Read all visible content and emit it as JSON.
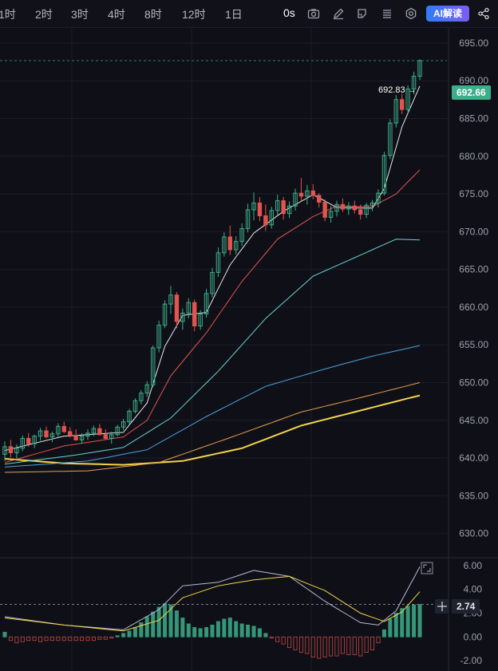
{
  "toolbar": {
    "timeframes": [
      "1时",
      "2时",
      "3时",
      "4时",
      "8时",
      "12时",
      "1日"
    ],
    "zero_label": "0s",
    "ai_label": "AI解读",
    "icons": [
      "camera-icon",
      "pencil-icon",
      "tag-icon",
      "list-icon",
      "settings-icon",
      "share-icon"
    ]
  },
  "price_axis": {
    "ticks": [
      "695.00",
      "690.00",
      "685.00",
      "680.00",
      "675.00",
      "670.00",
      "665.00",
      "660.00",
      "655.00",
      "650.00",
      "645.00",
      "640.00",
      "635.00",
      "630.00"
    ],
    "last_price": "692.66",
    "high_label": "692.83 →"
  },
  "macd_axis": {
    "ticks": [
      "6.00",
      "4.00",
      "2.00",
      "0.00",
      "-2.00"
    ],
    "current": "2.74"
  },
  "colors": {
    "up": "#3cae8a",
    "down": "#e2544f",
    "ma5": "#e8e8e8",
    "ma10": "#e2544f",
    "ma20": "#6ad3d0",
    "ma30": "#4aa3e0",
    "ma60": "#e8a04a",
    "ma120": "#f2d34a"
  },
  "chart_data": {
    "type": "candlestick",
    "ylim": [
      627,
      697
    ],
    "candles": [
      [
        640.5,
        642.2,
        639.6,
        641.5
      ],
      [
        641.5,
        642.4,
        640.1,
        640.7
      ],
      [
        640.7,
        641.8,
        639.9,
        641.3
      ],
      [
        641.3,
        643.0,
        640.9,
        642.6
      ],
      [
        642.6,
        643.3,
        641.5,
        641.9
      ],
      [
        641.9,
        643.1,
        641.3,
        642.9
      ],
      [
        642.9,
        644.0,
        642.3,
        643.6
      ],
      [
        643.6,
        644.2,
        642.6,
        642.8
      ],
      [
        642.8,
        643.5,
        642.1,
        643.2
      ],
      [
        643.2,
        644.6,
        642.8,
        644.2
      ],
      [
        644.2,
        644.8,
        643.3,
        643.5
      ],
      [
        643.5,
        644.1,
        642.7,
        643.0
      ],
      [
        643.0,
        643.8,
        642.3,
        642.4
      ],
      [
        642.4,
        643.3,
        641.9,
        642.9
      ],
      [
        642.9,
        643.8,
        642.4,
        643.3
      ],
      [
        643.3,
        644.3,
        642.9,
        643.9
      ],
      [
        643.9,
        644.5,
        643.0,
        643.1
      ],
      [
        643.1,
        643.8,
        642.4,
        642.6
      ],
      [
        642.6,
        643.5,
        641.9,
        643.1
      ],
      [
        643.1,
        644.4,
        642.9,
        644.1
      ],
      [
        644.1,
        645.2,
        643.7,
        644.8
      ],
      [
        644.8,
        646.5,
        644.4,
        646.2
      ],
      [
        646.2,
        647.9,
        645.9,
        647.6
      ],
      [
        647.6,
        649.0,
        647.1,
        648.6
      ],
      [
        648.6,
        650.2,
        648.1,
        649.7
      ],
      [
        649.7,
        654.9,
        649.4,
        654.6
      ],
      [
        654.6,
        658.2,
        654.0,
        657.6
      ],
      [
        657.6,
        660.9,
        657.2,
        660.4
      ],
      [
        660.4,
        662.8,
        659.1,
        661.6
      ],
      [
        661.6,
        662.0,
        657.2,
        658.1
      ],
      [
        658.1,
        659.8,
        657.0,
        659.2
      ],
      [
        659.2,
        661.2,
        658.5,
        660.6
      ],
      [
        660.6,
        661.0,
        656.8,
        657.5
      ],
      [
        657.5,
        659.6,
        657.0,
        659.1
      ],
      [
        659.1,
        662.4,
        658.6,
        661.8
      ],
      [
        661.8,
        665.2,
        661.3,
        664.6
      ],
      [
        664.6,
        667.9,
        664.0,
        667.2
      ],
      [
        667.2,
        669.9,
        666.7,
        669.3
      ],
      [
        669.3,
        670.8,
        666.9,
        667.6
      ],
      [
        667.6,
        669.4,
        667.0,
        668.7
      ],
      [
        668.7,
        671.1,
        668.1,
        670.4
      ],
      [
        670.4,
        673.7,
        669.9,
        672.9
      ],
      [
        672.9,
        675.2,
        671.5,
        673.8
      ],
      [
        673.8,
        674.6,
        671.4,
        672.1
      ],
      [
        672.1,
        673.6,
        670.1,
        670.9
      ],
      [
        670.9,
        673.3,
        670.4,
        672.8
      ],
      [
        672.8,
        674.9,
        672.2,
        674.1
      ],
      [
        674.1,
        674.6,
        671.6,
        672.4
      ],
      [
        672.4,
        674.0,
        671.8,
        673.4
      ],
      [
        673.4,
        675.7,
        672.8,
        675.1
      ],
      [
        675.1,
        677.1,
        674.0,
        674.7
      ],
      [
        674.7,
        676.2,
        673.6,
        675.4
      ],
      [
        675.4,
        676.3,
        674.3,
        674.8
      ],
      [
        674.8,
        675.1,
        673.2,
        673.9
      ],
      [
        673.9,
        674.3,
        671.4,
        671.9
      ],
      [
        671.9,
        673.4,
        671.2,
        672.7
      ],
      [
        672.7,
        674.1,
        672.0,
        673.6
      ],
      [
        673.6,
        674.4,
        672.6,
        673.0
      ],
      [
        673.0,
        673.9,
        672.2,
        673.4
      ],
      [
        673.4,
        674.1,
        672.4,
        672.9
      ],
      [
        672.9,
        673.6,
        671.6,
        672.3
      ],
      [
        672.3,
        673.8,
        671.8,
        673.5
      ],
      [
        673.5,
        674.2,
        672.7,
        673.8
      ],
      [
        673.8,
        675.6,
        673.2,
        675.1
      ],
      [
        675.1,
        680.6,
        674.8,
        680.1
      ],
      [
        680.1,
        684.9,
        679.6,
        684.4
      ],
      [
        684.4,
        688.1,
        683.8,
        687.5
      ],
      [
        687.5,
        688.3,
        685.6,
        686.2
      ],
      [
        686.2,
        689.4,
        685.7,
        688.9
      ],
      [
        688.9,
        691.2,
        688.2,
        690.6
      ],
      [
        690.6,
        692.83,
        690.1,
        692.66
      ]
    ],
    "ma_series": [
      {
        "key": "ma5",
        "width": 1,
        "points": [
          [
            0,
            641.0
          ],
          [
            10,
            642.9
          ],
          [
            20,
            643.4
          ],
          [
            24,
            647.3
          ],
          [
            27,
            654.8
          ],
          [
            30,
            658.9
          ],
          [
            34,
            659.3
          ],
          [
            38,
            665.6
          ],
          [
            42,
            669.8
          ],
          [
            47,
            672.7
          ],
          [
            52,
            674.9
          ],
          [
            56,
            673.2
          ],
          [
            62,
            673.1
          ],
          [
            64,
            675.7
          ],
          [
            67,
            683.9
          ],
          [
            70,
            689.3
          ]
        ]
      },
      {
        "key": "ma10",
        "width": 1,
        "points": [
          [
            0,
            639.4
          ],
          [
            10,
            641.6
          ],
          [
            20,
            642.8
          ],
          [
            24,
            645.0
          ],
          [
            28,
            650.9
          ],
          [
            34,
            656.6
          ],
          [
            40,
            663.4
          ],
          [
            46,
            669.0
          ],
          [
            52,
            672.0
          ],
          [
            56,
            673.4
          ],
          [
            62,
            673.3
          ],
          [
            66,
            675.0
          ],
          [
            70,
            678.2
          ]
        ]
      },
      {
        "key": "ma20",
        "width": 1,
        "points": [
          [
            0,
            639.2
          ],
          [
            12,
            640.4
          ],
          [
            20,
            641.4
          ],
          [
            28,
            645.3
          ],
          [
            36,
            651.5
          ],
          [
            44,
            658.5
          ],
          [
            52,
            664.1
          ],
          [
            60,
            666.9
          ],
          [
            66,
            669.0
          ],
          [
            70,
            668.9
          ]
        ]
      },
      {
        "key": "ma30",
        "width": 1,
        "points": [
          [
            0,
            638.8
          ],
          [
            14,
            639.6
          ],
          [
            24,
            641.1
          ],
          [
            34,
            645.5
          ],
          [
            44,
            649.5
          ],
          [
            54,
            651.8
          ],
          [
            62,
            653.5
          ],
          [
            70,
            654.9
          ]
        ]
      },
      {
        "key": "ma60",
        "width": 1,
        "points": [
          [
            0,
            638.1
          ],
          [
            14,
            638.3
          ],
          [
            26,
            639.4
          ],
          [
            38,
            642.7
          ],
          [
            50,
            646.1
          ],
          [
            60,
            648.0
          ],
          [
            70,
            650.0
          ]
        ]
      },
      {
        "key": "ma120",
        "width": 2,
        "points": [
          [
            0,
            639.9
          ],
          [
            10,
            639.3
          ],
          [
            20,
            639.1
          ],
          [
            30,
            639.6
          ],
          [
            40,
            641.3
          ],
          [
            50,
            644.3
          ],
          [
            60,
            646.3
          ],
          [
            70,
            648.3
          ]
        ]
      }
    ],
    "macd": {
      "ylim": [
        -2.6,
        6.4
      ],
      "hist": [
        0.4,
        -0.3,
        -0.5,
        -0.4,
        -0.3,
        -0.3,
        -0.4,
        -0.3,
        -0.3,
        -0.3,
        -0.3,
        -0.3,
        -0.3,
        -0.3,
        -0.3,
        -0.3,
        -0.2,
        -0.2,
        -0.1,
        0.1,
        0.3,
        0.5,
        0.8,
        1.2,
        1.7,
        2.1,
        2.5,
        2.8,
        2.7,
        2.2,
        1.6,
        1.1,
        0.8,
        0.7,
        0.8,
        1.0,
        1.3,
        1.5,
        1.6,
        1.3,
        1.1,
        1.0,
        0.9,
        0.7,
        0.3,
        -0.1,
        -0.4,
        -0.6,
        -0.9,
        -1.1,
        -1.3,
        -1.4,
        -1.7,
        -1.8,
        -1.7,
        -1.6,
        -1.6,
        -1.4,
        -1.5,
        -1.5,
        -1.6,
        -1.3,
        -1.1,
        -0.5,
        0.6,
        1.5,
        2.0,
        2.4,
        2.6,
        2.7,
        2.74
      ],
      "dif": [
        [
          0,
          1.7
        ],
        [
          10,
          1.0
        ],
        [
          20,
          0.6
        ],
        [
          26,
          2.3
        ],
        [
          30,
          4.3
        ],
        [
          36,
          4.6
        ],
        [
          42,
          5.6
        ],
        [
          48,
          5.1
        ],
        [
          54,
          3.0
        ],
        [
          60,
          1.2
        ],
        [
          63,
          1.0
        ],
        [
          66,
          2.2
        ],
        [
          70,
          5.9
        ]
      ],
      "dea": [
        [
          0,
          1.6
        ],
        [
          10,
          1.0
        ],
        [
          20,
          0.5
        ],
        [
          26,
          1.4
        ],
        [
          30,
          3.3
        ],
        [
          36,
          4.3
        ],
        [
          42,
          4.8
        ],
        [
          48,
          5.1
        ],
        [
          54,
          3.9
        ],
        [
          60,
          2.0
        ],
        [
          64,
          1.3
        ],
        [
          67,
          2.1
        ],
        [
          70,
          3.8
        ]
      ],
      "zero_dashed": 2.74
    }
  }
}
